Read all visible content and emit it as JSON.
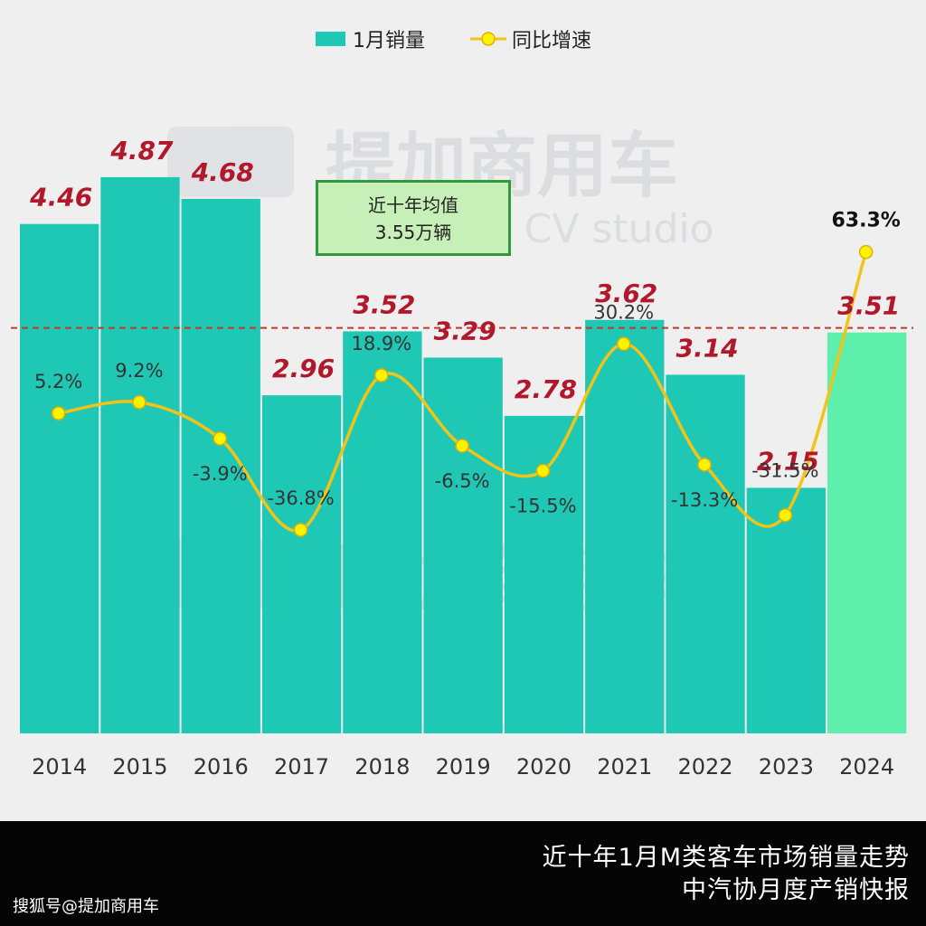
{
  "chart_data": {
    "type": "bar",
    "categories": [
      "2014",
      "2015",
      "2016",
      "2017",
      "2018",
      "2019",
      "2020",
      "2021",
      "2022",
      "2023",
      "2024"
    ],
    "series": [
      {
        "name": "1月销量",
        "type": "bar",
        "values": [
          4.46,
          4.87,
          4.68,
          2.96,
          3.52,
          3.29,
          2.78,
          3.62,
          3.14,
          2.15,
          3.51
        ],
        "labels": [
          "4.46",
          "4.87",
          "4.68",
          "2.96",
          "3.52",
          "3.29",
          "2.78",
          "3.62",
          "3.14",
          "2.15",
          "3.51"
        ]
      },
      {
        "name": "同比增速",
        "type": "line",
        "values": [
          5.2,
          9.2,
          -3.9,
          -36.8,
          18.9,
          -6.5,
          -15.5,
          30.2,
          -13.3,
          -31.5,
          63.3
        ],
        "labels": [
          "5.2%",
          "9.2%",
          "-3.9%",
          "-36.8%",
          "18.9%",
          "-6.5%",
          "-15.5%",
          "30.2%",
          "-13.3%",
          "-31.5%",
          "63.3%"
        ]
      }
    ],
    "average_line": {
      "value": 3.55,
      "label_line1": "近十年均值",
      "label_line2": "3.55万辆"
    },
    "legend_position": "top-center",
    "colors": {
      "bar": "#1fc8b4",
      "bar_highlight": "#5fefad",
      "line": "#f0c419",
      "marker": "#fff200",
      "bar_label": "#b2182b",
      "average_line": "#c0392b"
    }
  },
  "watermark": {
    "text_cn": "提加商用车",
    "text_en": "TruckPlus CV studio"
  },
  "footer": {
    "caption_line1": "近十年1月M类客车市场销量走势",
    "caption_line2": "中汽协月度产销快报",
    "source": "搜狐号@提加商用车"
  }
}
